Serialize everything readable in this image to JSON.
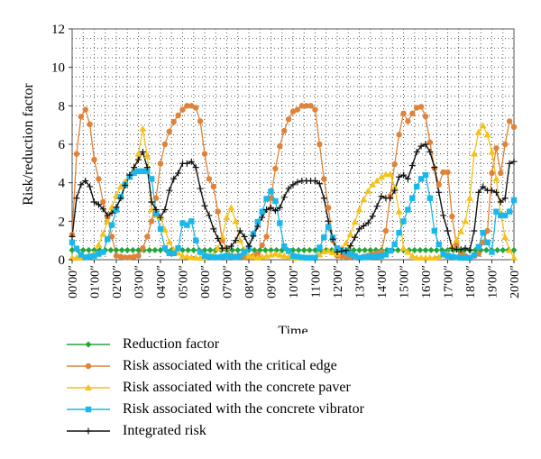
{
  "chart_data": {
    "type": "line",
    "title": "",
    "xlabel": "Time",
    "ylabel": "Risk/reduction factor",
    "ylim": [
      0,
      12
    ],
    "yticks": [
      0,
      2,
      4,
      6,
      8,
      10,
      12
    ],
    "xlim": [
      0,
      20
    ],
    "xtick_labels": [
      "00′00″",
      "01′00″",
      "02′00″",
      "03′00″",
      "04′00″",
      "05′00″",
      "06′00″",
      "07′00″",
      "08′00″",
      "09′00″",
      "10′00″",
      "11′00″",
      "12′00″",
      "13′00″",
      "14′00″",
      "15′00″",
      "16′00″",
      "17′00″",
      "18′00″",
      "19′00″",
      "20′00″"
    ],
    "grid": "dotted",
    "legend_position": "bottom",
    "series": [
      {
        "name": "Reduction factor",
        "color": "#22a63a",
        "marker": "diamond",
        "x": [
          0,
          20
        ],
        "y": [
          0.5,
          0.5
        ],
        "sample_step": 0.25
      },
      {
        "name": "Risk associated with the critical edge",
        "color": "#e08338",
        "marker": "circle",
        "x": [
          0,
          0.2,
          0.35,
          0.5,
          0.6,
          0.75,
          1.0,
          1.2,
          1.4,
          1.6,
          1.8,
          2.0,
          2.5,
          3.0,
          3.3,
          3.6,
          3.8,
          4.0,
          4.2,
          4.5,
          4.8,
          5.0,
          5.2,
          5.4,
          5.6,
          5.8,
          6.0,
          6.2,
          6.4,
          6.6,
          6.8,
          7.2,
          8.0,
          8.4,
          8.8,
          9.0,
          9.3,
          9.6,
          9.8,
          10.0,
          10.2,
          10.4,
          10.6,
          10.8,
          11.0,
          11.2,
          11.4,
          11.6,
          11.8,
          12.0,
          13.0,
          14.0,
          14.2,
          14.5,
          14.8,
          15.0,
          15.2,
          15.5,
          15.7,
          15.9,
          16.1,
          16.3,
          16.5,
          16.7,
          16.9,
          17.1,
          17.3,
          17.6,
          18.0,
          18.4,
          18.8,
          19.0,
          19.2,
          19.4,
          19.6,
          19.8,
          20.0
        ],
        "y": [
          1.3,
          5.5,
          7.3,
          7.7,
          7.8,
          7.5,
          5.2,
          4.2,
          3.0,
          2.2,
          1.2,
          0.2,
          0.1,
          0.2,
          0.8,
          2.0,
          3.2,
          5.0,
          6.0,
          7.0,
          7.5,
          7.8,
          8.0,
          8.0,
          7.9,
          7.2,
          5.5,
          4.2,
          3.8,
          2.5,
          1.0,
          0.2,
          0.1,
          0.3,
          1.2,
          3.2,
          5.5,
          6.7,
          7.3,
          7.7,
          7.8,
          8.0,
          8.0,
          8.0,
          7.8,
          6.0,
          4.2,
          2.7,
          1.0,
          0.2,
          0.1,
          0.4,
          1.5,
          4.2,
          6.5,
          7.6,
          7.2,
          7.8,
          8.0,
          7.9,
          7.0,
          5.2,
          4.3,
          3.5,
          5.6,
          3.5,
          1.0,
          0.3,
          0.1,
          0.3,
          1.5,
          4.5,
          5.8,
          4.5,
          6.0,
          7.2,
          6.9
        ],
        "sample_step": 0.2
      },
      {
        "name": "Risk associated with the concrete paver",
        "color": "#f5c21a",
        "marker": "triangle",
        "x": [
          0,
          0.5,
          1.0,
          1.3,
          1.6,
          1.9,
          2.2,
          2.5,
          2.8,
          3.0,
          3.2,
          3.4,
          3.6,
          3.8,
          4.0,
          4.5,
          5.0,
          5.5,
          6.0,
          6.5,
          6.8,
          7.0,
          7.2,
          7.4,
          7.6,
          7.8,
          8.0,
          8.4,
          8.8,
          9.2,
          9.6,
          10.0,
          11.0,
          11.5,
          12.0,
          12.5,
          13.0,
          13.3,
          13.6,
          14.0,
          14.3,
          14.5,
          14.8,
          15.0,
          15.5,
          16.0,
          16.5,
          17.0,
          17.5,
          17.8,
          18.0,
          18.2,
          18.5,
          18.8,
          19.0,
          19.2,
          19.5,
          19.8,
          20.0
        ],
        "y": [
          0.1,
          0.1,
          0.3,
          1.0,
          2.0,
          3.1,
          3.8,
          4.2,
          4.6,
          5.5,
          6.8,
          5.4,
          2.6,
          2.3,
          2.2,
          0.6,
          0.2,
          0.1,
          0.1,
          0.3,
          1.2,
          2.2,
          2.7,
          2.0,
          1.0,
          0.5,
          0.2,
          0.1,
          0.2,
          0.3,
          0.2,
          0.1,
          0.1,
          0.5,
          0.3,
          1.0,
          2.6,
          3.4,
          3.9,
          4.3,
          4.5,
          4.4,
          2.5,
          0.6,
          0.1,
          0.1,
          0.1,
          0.3,
          1.2,
          2.0,
          3.2,
          5.5,
          7.2,
          6.5,
          5.6,
          4.2,
          1.5,
          0.5,
          0.1
        ],
        "sample_step": 0.2
      },
      {
        "name": "Risk associated with the concrete vibrator",
        "color": "#1ab7ea",
        "marker": "square",
        "x": [
          0,
          0.5,
          1.0,
          1.4,
          1.7,
          2.0,
          2.3,
          2.5,
          2.8,
          3.0,
          3.2,
          3.4,
          3.6,
          3.8,
          4.0,
          4.2,
          4.5,
          4.8,
          5.0,
          5.2,
          5.4,
          5.6,
          5.8,
          6.0,
          6.5,
          7.0,
          7.5,
          8.0,
          8.3,
          8.6,
          8.9,
          9.1,
          9.3,
          9.6,
          10.0,
          10.5,
          11.0,
          11.3,
          11.6,
          12.0,
          13.0,
          14.0,
          14.3,
          14.6,
          15.0,
          15.4,
          15.7,
          16.0,
          16.2,
          16.4,
          16.6,
          16.8,
          17.0,
          17.5,
          18.0,
          18.3,
          18.6,
          19.0,
          19.2,
          19.5,
          19.8,
          20.0
        ],
        "y": [
          0.9,
          0.1,
          0.2,
          0.4,
          1.4,
          2.6,
          3.6,
          4.2,
          4.5,
          4.6,
          4.6,
          4.6,
          4.2,
          2.4,
          1.6,
          0.6,
          0.2,
          0.6,
          1.9,
          1.8,
          2.0,
          1.0,
          0.4,
          0.2,
          0.1,
          0.2,
          0.1,
          0.6,
          1.7,
          2.5,
          3.5,
          3.6,
          2.5,
          0.7,
          0.2,
          0.1,
          0.1,
          0.9,
          1.7,
          0.6,
          0.1,
          0.2,
          0.3,
          0.8,
          2.0,
          3.2,
          4.1,
          4.4,
          3.2,
          1.5,
          0.8,
          0.3,
          0.2,
          0.1,
          0.1,
          0.3,
          1.4,
          0.4,
          2.5,
          2.2,
          2.5,
          3.1
        ],
        "sample_step": 0.2
      },
      {
        "name": "Integrated risk",
        "color": "#111111",
        "marker": "plus",
        "x": [
          0,
          0.2,
          0.4,
          0.6,
          0.8,
          1.0,
          1.3,
          1.6,
          1.9,
          2.2,
          2.5,
          2.8,
          3.0,
          3.2,
          3.4,
          3.6,
          3.8,
          4.0,
          4.2,
          4.4,
          4.6,
          4.8,
          5.0,
          5.2,
          5.4,
          5.6,
          5.8,
          6.0,
          6.2,
          6.4,
          6.6,
          6.8,
          7.0,
          7.2,
          7.4,
          7.6,
          7.8,
          8.0,
          8.3,
          8.6,
          8.9,
          9.1,
          9.3,
          9.5,
          9.7,
          10.0,
          10.3,
          10.6,
          10.9,
          11.1,
          11.3,
          11.5,
          11.7,
          12.0,
          12.5,
          13.0,
          13.5,
          14.0,
          14.2,
          14.4,
          14.6,
          14.8,
          15.0,
          15.2,
          15.4,
          15.6,
          15.8,
          16.0,
          16.2,
          16.4,
          16.6,
          16.8,
          17.0,
          17.2,
          17.5,
          17.8,
          18.0,
          18.2,
          18.4,
          18.6,
          18.8,
          19.0,
          19.2,
          19.4,
          19.6,
          19.8,
          20.0
        ],
        "y": [
          1.2,
          3.2,
          3.9,
          4.1,
          3.8,
          3.0,
          2.8,
          2.3,
          2.5,
          3.2,
          4.2,
          4.8,
          5.2,
          5.6,
          4.8,
          3.0,
          2.6,
          2.2,
          2.6,
          3.6,
          4.2,
          4.5,
          5.0,
          5.0,
          5.1,
          4.8,
          3.7,
          2.8,
          2.3,
          1.6,
          1.1,
          0.6,
          0.6,
          0.7,
          1.0,
          1.5,
          1.2,
          0.7,
          1.5,
          2.2,
          2.8,
          2.6,
          2.5,
          2.9,
          3.6,
          3.9,
          4.1,
          4.1,
          4.1,
          4.1,
          3.8,
          2.6,
          1.4,
          0.4,
          0.5,
          1.6,
          2.0,
          3.3,
          3.2,
          3.2,
          3.6,
          4.3,
          4.4,
          4.2,
          4.9,
          5.6,
          5.9,
          6.0,
          5.6,
          4.8,
          3.5,
          2.3,
          1.5,
          0.6,
          0.5,
          0.6,
          0.5,
          1.5,
          3.5,
          3.8,
          3.6,
          3.6,
          3.5,
          3.0,
          3.2,
          5.0,
          5.1
        ],
        "sample_step": 0.2
      }
    ]
  }
}
